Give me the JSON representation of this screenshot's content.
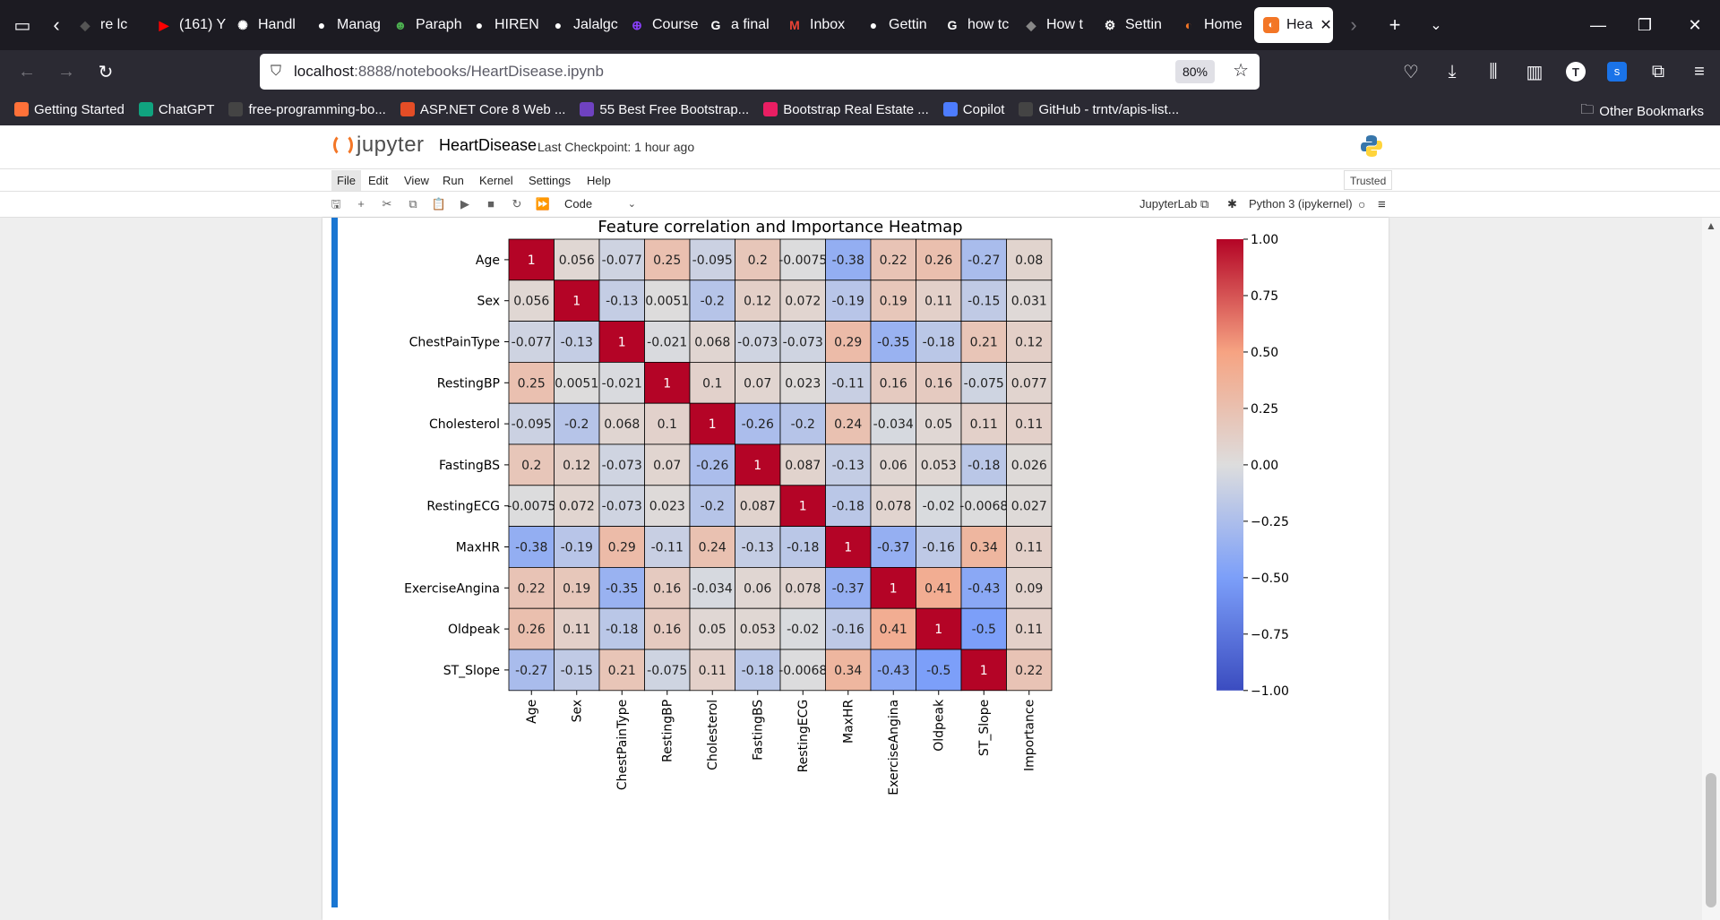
{
  "browser": {
    "tabs": [
      {
        "title": "re lc",
        "icon": "generic-icon",
        "color": "#555555"
      },
      {
        "title": "(161) Y",
        "icon": "youtube-icon",
        "color": "#ff0000"
      },
      {
        "title": "Handl",
        "icon": "chatgpt-icon",
        "color": "#ffffff"
      },
      {
        "title": "Manag",
        "icon": "github-icon",
        "color": "#ffffff"
      },
      {
        "title": "Paraph",
        "icon": "robot-icon",
        "color": "#4caf50"
      },
      {
        "title": "HIREN",
        "icon": "github-icon",
        "color": "#ffffff"
      },
      {
        "title": "Jalalgc",
        "icon": "github-icon",
        "color": "#ffffff"
      },
      {
        "title": "Course",
        "icon": "course-icon",
        "color": "#8a3ffc"
      },
      {
        "title": "a final",
        "icon": "google-icon",
        "color": "#ffffff"
      },
      {
        "title": "Inbox",
        "icon": "gmail-icon",
        "color": "#ea4335"
      },
      {
        "title": "Gettin",
        "icon": "github-icon",
        "color": "#ffffff"
      },
      {
        "title": "how tc",
        "icon": "google-icon",
        "color": "#ffffff"
      },
      {
        "title": "How t",
        "icon": "generic-icon",
        "color": "#888888"
      },
      {
        "title": "Settin",
        "icon": "gear-icon",
        "color": "#ffffff"
      },
      {
        "title": "Home",
        "icon": "jupyter-icon",
        "color": "#f37626"
      }
    ],
    "active_tab": {
      "title": "Hea",
      "icon": "jupyter-icon"
    },
    "url_host": "localhost",
    "url_path": ":8888/notebooks/HeartDisease.ipynb",
    "zoom": "80%",
    "profile_initial": "T",
    "bookmarks": [
      {
        "label": "Getting Started",
        "icon": "firefox-icon",
        "color": "#ff7139"
      },
      {
        "label": "ChatGPT",
        "icon": "chatgpt-icon",
        "color": "#10a37f"
      },
      {
        "label": "free-programming-bo...",
        "icon": "github-icon",
        "color": "#444444"
      },
      {
        "label": "ASP.NET Core 8 Web ...",
        "icon": "bookmark-icon",
        "color": "#e44d26"
      },
      {
        "label": "55 Best Free Bootstrap...",
        "icon": "colorlib-icon",
        "color": "#6f42c1"
      },
      {
        "label": "Bootstrap Real Estate ...",
        "icon": "bookmark-icon",
        "color": "#e91e63"
      },
      {
        "label": "Copilot",
        "icon": "copilot-icon",
        "color": "#4d7cfe"
      },
      {
        "label": "GitHub - trntv/apis-list...",
        "icon": "github-icon",
        "color": "#444444"
      }
    ],
    "other_bookmarks": "Other Bookmarks"
  },
  "jupyter": {
    "logo_text": "jupyter",
    "notebook_title": "HeartDisease",
    "checkpoint": "Last Checkpoint: 1 hour ago",
    "menu": [
      "File",
      "Edit",
      "View",
      "Run",
      "Kernel",
      "Settings",
      "Help"
    ],
    "trusted": "Trusted",
    "cell_type": "Code",
    "jupyterlab_link": "JupyterLab",
    "kernel": "Python 3 (ipykernel)"
  },
  "chart_data": {
    "type": "heatmap",
    "title": "Feature correlation and Importance Heatmap",
    "rows": [
      "Age",
      "Sex",
      "ChestPainType",
      "RestingBP",
      "Cholesterol",
      "FastingBS",
      "RestingECG",
      "MaxHR",
      "ExerciseAngina",
      "Oldpeak",
      "ST_Slope"
    ],
    "columns": [
      "Age",
      "Sex",
      "ChestPainType",
      "RestingBP",
      "Cholesterol",
      "FastingBS",
      "RestingECG",
      "MaxHR",
      "ExerciseAngina",
      "Oldpeak",
      "ST_Slope",
      "Importance"
    ],
    "values": [
      [
        1,
        0.056,
        -0.077,
        0.25,
        -0.095,
        0.2,
        -0.0075,
        -0.38,
        0.22,
        0.26,
        -0.27,
        0.08
      ],
      [
        0.056,
        1,
        -0.13,
        0.0051,
        -0.2,
        0.12,
        0.072,
        -0.19,
        0.19,
        0.11,
        -0.15,
        0.031
      ],
      [
        -0.077,
        -0.13,
        1,
        -0.021,
        0.068,
        -0.073,
        -0.073,
        0.29,
        -0.35,
        -0.18,
        0.21,
        0.12
      ],
      [
        0.25,
        0.0051,
        -0.021,
        1,
        0.1,
        0.07,
        0.023,
        -0.11,
        0.16,
        0.16,
        -0.075,
        0.077
      ],
      [
        -0.095,
        -0.2,
        0.068,
        0.1,
        1,
        -0.26,
        -0.2,
        0.24,
        -0.034,
        0.05,
        0.11,
        0.11
      ],
      [
        0.2,
        0.12,
        -0.073,
        0.07,
        -0.26,
        1,
        0.087,
        -0.13,
        0.06,
        0.053,
        -0.18,
        0.026
      ],
      [
        -0.0075,
        0.072,
        -0.073,
        0.023,
        -0.2,
        0.087,
        1,
        -0.18,
        0.078,
        -0.02,
        -0.0068,
        0.027
      ],
      [
        -0.38,
        -0.19,
        0.29,
        -0.11,
        0.24,
        -0.13,
        -0.18,
        1,
        -0.37,
        -0.16,
        0.34,
        0.11
      ],
      [
        0.22,
        0.19,
        -0.35,
        0.16,
        -0.034,
        0.06,
        0.078,
        -0.37,
        1,
        0.41,
        -0.43,
        0.09
      ],
      [
        0.26,
        0.11,
        -0.18,
        0.16,
        0.05,
        0.053,
        -0.02,
        -0.16,
        0.41,
        1,
        -0.5,
        0.11
      ],
      [
        -0.27,
        -0.15,
        0.21,
        -0.075,
        0.11,
        -0.18,
        -0.0068,
        0.34,
        -0.43,
        -0.5,
        1,
        0.22
      ]
    ],
    "value_labels": [
      [
        "1",
        "0.056",
        "-0.077",
        "0.25",
        "-0.095",
        "0.2",
        "-0.0075",
        "-0.38",
        "0.22",
        "0.26",
        "-0.27",
        "0.08"
      ],
      [
        "0.056",
        "1",
        "-0.13",
        "0.0051",
        "-0.2",
        "0.12",
        "0.072",
        "-0.19",
        "0.19",
        "0.11",
        "-0.15",
        "0.031"
      ],
      [
        "-0.077",
        "-0.13",
        "1",
        "-0.021",
        "0.068",
        "-0.073",
        "-0.073",
        "0.29",
        "-0.35",
        "-0.18",
        "0.21",
        "0.12"
      ],
      [
        "0.25",
        "0.0051",
        "-0.021",
        "1",
        "0.1",
        "0.07",
        "0.023",
        "-0.11",
        "0.16",
        "0.16",
        "-0.075",
        "0.077"
      ],
      [
        "-0.095",
        "-0.2",
        "0.068",
        "0.1",
        "1",
        "-0.26",
        "-0.2",
        "0.24",
        "-0.034",
        "0.05",
        "0.11",
        "0.11"
      ],
      [
        "0.2",
        "0.12",
        "-0.073",
        "0.07",
        "-0.26",
        "1",
        "0.087",
        "-0.13",
        "0.06",
        "0.053",
        "-0.18",
        "0.026"
      ],
      [
        "-0.0075",
        "0.072",
        "-0.073",
        "0.023",
        "-0.2",
        "0.087",
        "1",
        "-0.18",
        "0.078",
        "-0.02",
        "-0.0068",
        "0.027"
      ],
      [
        "-0.38",
        "-0.19",
        "0.29",
        "-0.11",
        "0.24",
        "-0.13",
        "-0.18",
        "1",
        "-0.37",
        "-0.16",
        "0.34",
        "0.11"
      ],
      [
        "0.22",
        "0.19",
        "-0.35",
        "0.16",
        "-0.034",
        "0.06",
        "0.078",
        "-0.37",
        "1",
        "0.41",
        "-0.43",
        "0.09"
      ],
      [
        "0.26",
        "0.11",
        "-0.18",
        "0.16",
        "0.05",
        "0.053",
        "-0.02",
        "-0.16",
        "0.41",
        "1",
        "-0.5",
        "0.11"
      ],
      [
        "-0.27",
        "-0.15",
        "0.21",
        "-0.075",
        "0.11",
        "-0.18",
        "-0.0068",
        "0.34",
        "-0.43",
        "-0.5",
        "1",
        "0.22"
      ]
    ],
    "colormap": "coolwarm",
    "vmin": -1,
    "vmax": 1,
    "colorbar_ticks": [
      1.0,
      0.75,
      0.5,
      0.25,
      0.0,
      -0.25,
      -0.5,
      -0.75,
      -1.0
    ],
    "colorbar_tick_labels": [
      "1.00",
      "0.75",
      "0.50",
      "0.25",
      "0.00",
      "−0.25",
      "−0.50",
      "−0.75",
      "−1.00"
    ]
  }
}
